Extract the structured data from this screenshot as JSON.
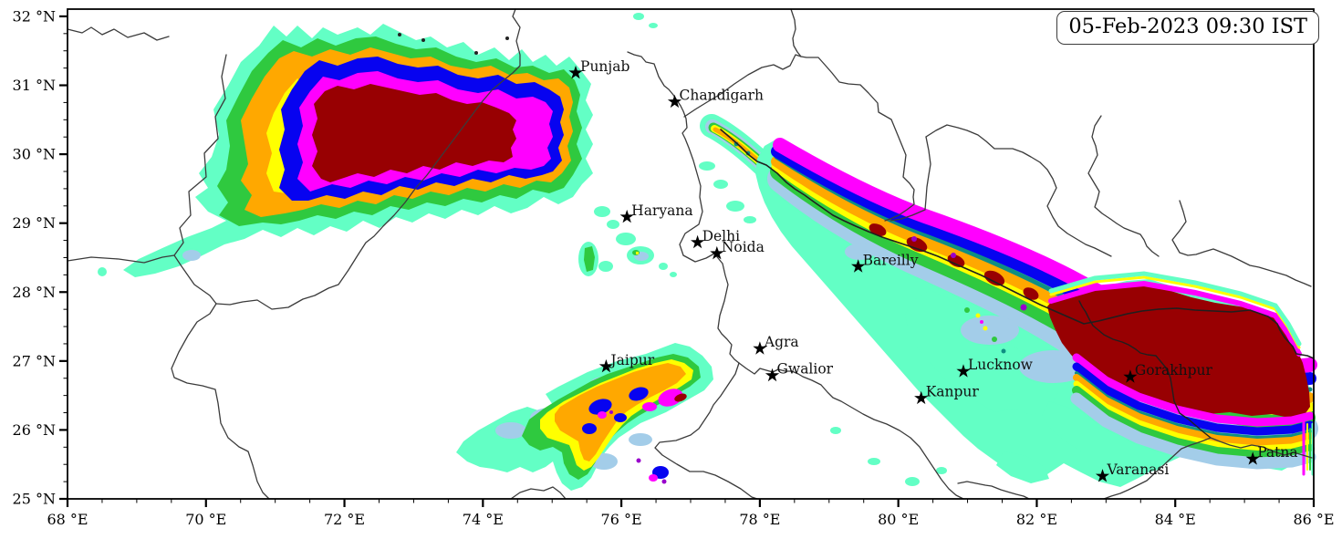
{
  "title_box": {
    "label": "05-Feb-2023 09:30 IST"
  },
  "axes": {
    "x": {
      "min": 68,
      "max": 86,
      "major_step": 2,
      "minor_step": 0.5,
      "unit": "°E",
      "ticks": [
        {
          "lon": 68,
          "label": "68 °E"
        },
        {
          "lon": 70,
          "label": "70 °E"
        },
        {
          "lon": 72,
          "label": "72 °E"
        },
        {
          "lon": 74,
          "label": "74 °E"
        },
        {
          "lon": 76,
          "label": "76 °E"
        },
        {
          "lon": 78,
          "label": "78 °E"
        },
        {
          "lon": 80,
          "label": "80 °E"
        },
        {
          "lon": 82,
          "label": "82 °E"
        },
        {
          "lon": 84,
          "label": "84 °E"
        },
        {
          "lon": 86,
          "label": "86 °E"
        }
      ]
    },
    "y": {
      "min": 25,
      "max": 32.105,
      "major_step": 1,
      "minor_step": 0.25,
      "unit": "°N",
      "ticks": [
        {
          "lat": 25,
          "label": "25 °N"
        },
        {
          "lat": 26,
          "label": "26 °N"
        },
        {
          "lat": 27,
          "label": "27 °N"
        },
        {
          "lat": 28,
          "label": "28 °N"
        },
        {
          "lat": 29,
          "label": "29 °N"
        },
        {
          "lat": 30,
          "label": "30 °N"
        },
        {
          "lat": 31,
          "label": "31 °N"
        },
        {
          "lat": 32,
          "label": "32 °N"
        }
      ]
    }
  },
  "cities": [
    {
      "name": "Punjab",
      "lon": 75.34,
      "lat": 31.18
    },
    {
      "name": "Chandigarh",
      "lon": 76.77,
      "lat": 30.76
    },
    {
      "name": "Haryana",
      "lon": 76.08,
      "lat": 29.09
    },
    {
      "name": "Delhi",
      "lon": 77.1,
      "lat": 28.72
    },
    {
      "name": "Noida",
      "lon": 77.38,
      "lat": 28.56
    },
    {
      "name": "Bareilly",
      "lon": 79.42,
      "lat": 28.37
    },
    {
      "name": "Jaipur",
      "lon": 75.78,
      "lat": 26.92
    },
    {
      "name": "Agra",
      "lon": 78.0,
      "lat": 27.18
    },
    {
      "name": "Gwalior",
      "lon": 78.18,
      "lat": 26.79
    },
    {
      "name": "Lucknow",
      "lon": 80.94,
      "lat": 26.85
    },
    {
      "name": "Kanpur",
      "lon": 80.33,
      "lat": 26.46
    },
    {
      "name": "Gorakhpur",
      "lon": 83.35,
      "lat": 26.77
    },
    {
      "name": "Varanasi",
      "lon": 82.95,
      "lat": 25.33
    },
    {
      "name": "Patna",
      "lon": 85.12,
      "lat": 25.58
    }
  ],
  "palette": {
    "turquoise": "#63FFC5",
    "lightblue": "#A3CDE9",
    "green": "#2FC93F",
    "yellow": "#FFFF00",
    "orange": "#FFA800",
    "teal": "#0F8F82",
    "blue": "#0703F0",
    "magenta": "#FF00FF",
    "purple": "#9901CC",
    "darkred": "#980002"
  },
  "map_colors": {
    "background": "#ffffff",
    "frame": "#000000",
    "state_boundary": "#3b3b3b",
    "international_boundary": "#1f1f1f",
    "city_marker": "#000000",
    "label": "#111111"
  }
}
